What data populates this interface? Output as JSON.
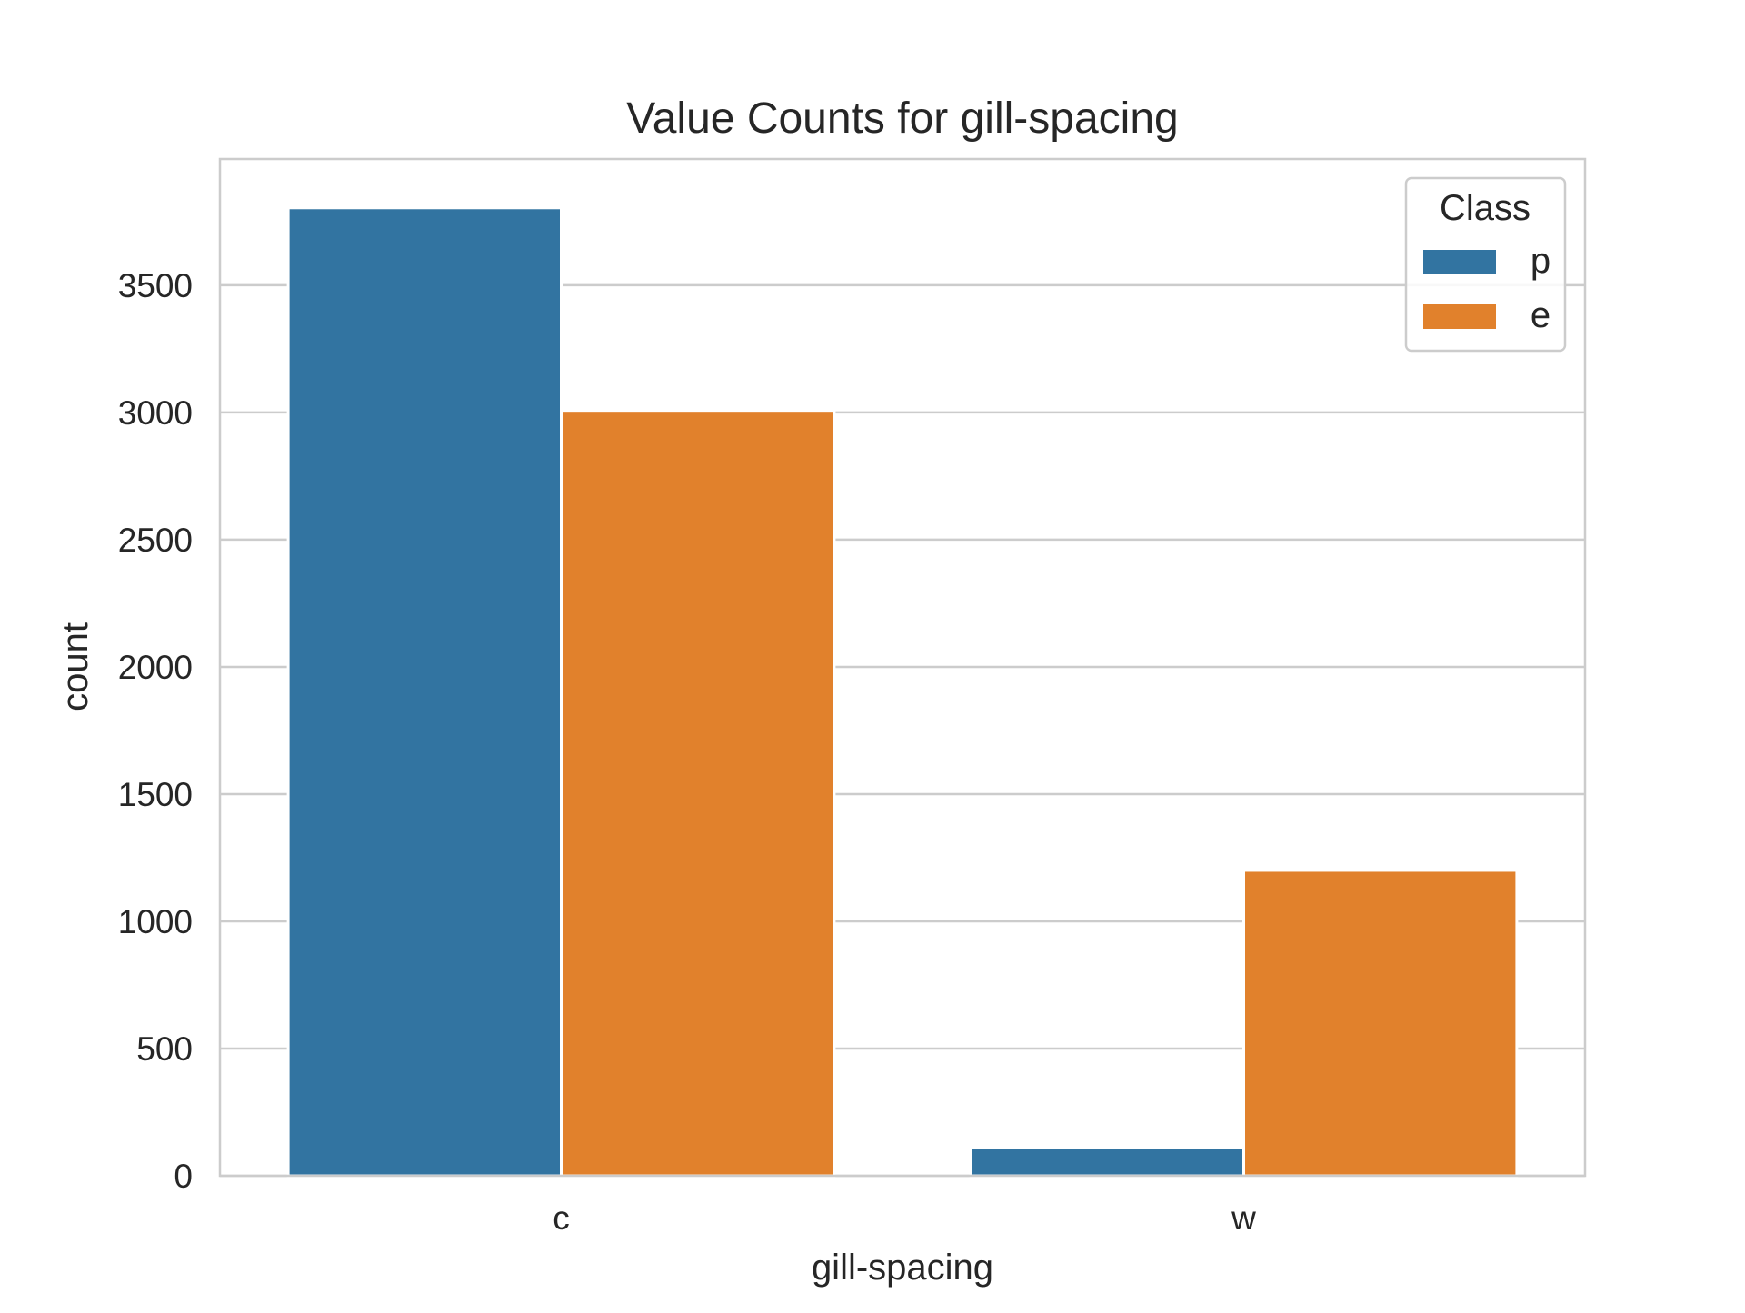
{
  "chart_data": {
    "type": "bar",
    "title": "Value Counts for gill-spacing",
    "xlabel": "gill-spacing",
    "ylabel": "count",
    "categories": [
      "c",
      "w"
    ],
    "series": [
      {
        "name": "p",
        "values": [
          3804,
          112
        ],
        "color": "#3274a1"
      },
      {
        "name": "e",
        "values": [
          3008,
          1200
        ],
        "color": "#e1812c"
      }
    ],
    "ylim": [
      0,
      3996
    ],
    "yticks": [
      0,
      500,
      1000,
      1500,
      2000,
      2500,
      3000,
      3500
    ],
    "ytick_labels": [
      "0",
      "500",
      "1000",
      "1500",
      "2000",
      "2500",
      "3000",
      "3500"
    ],
    "grid": true,
    "legend": {
      "title": "Class",
      "placement": "top-right"
    }
  }
}
